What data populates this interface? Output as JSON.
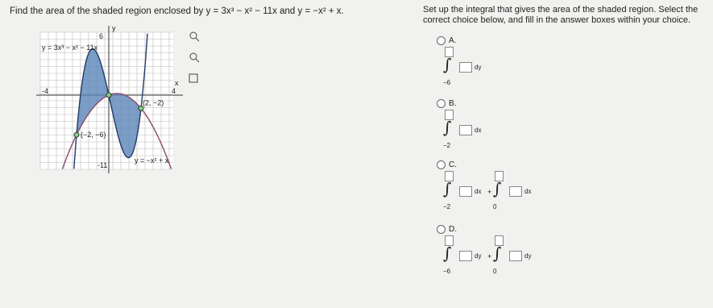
{
  "question": {
    "lead": "Find the area of the shaded region enclosed by",
    "curve1": "y = 3x³ − x² − 11x",
    "joiner": "and",
    "curve2": "y = −x² + x."
  },
  "instruction": "Set up the integral that gives the area of the shaded region. Select the correct choice below, and fill in the answer boxes within your choice.",
  "graph": {
    "y_axis": "y",
    "x_axis": "x",
    "y_top": "6",
    "x_left": "-4",
    "x_right": "4",
    "y_bottom": "-11",
    "curve1_label": "y = 3x³ − x² − 11x",
    "curve2_label": "y = −x² + x",
    "point1": "(2, −2)",
    "point2": "(−2, −6)"
  },
  "choices": [
    {
      "letter": "A.",
      "integrals": [
        {
          "lower": "−6",
          "d": "dy"
        }
      ]
    },
    {
      "letter": "B.",
      "integrals": [
        {
          "lower": "−2",
          "d": "dx"
        }
      ]
    },
    {
      "letter": "C.",
      "integrals": [
        {
          "lower": "−2",
          "d": "dx"
        },
        {
          "lower": "0",
          "d": "dx"
        }
      ],
      "plus": "+"
    },
    {
      "letter": "D.",
      "integrals": [
        {
          "lower": "−6",
          "d": "dy"
        },
        {
          "lower": "0",
          "d": "dy"
        }
      ],
      "plus": "+"
    }
  ]
}
